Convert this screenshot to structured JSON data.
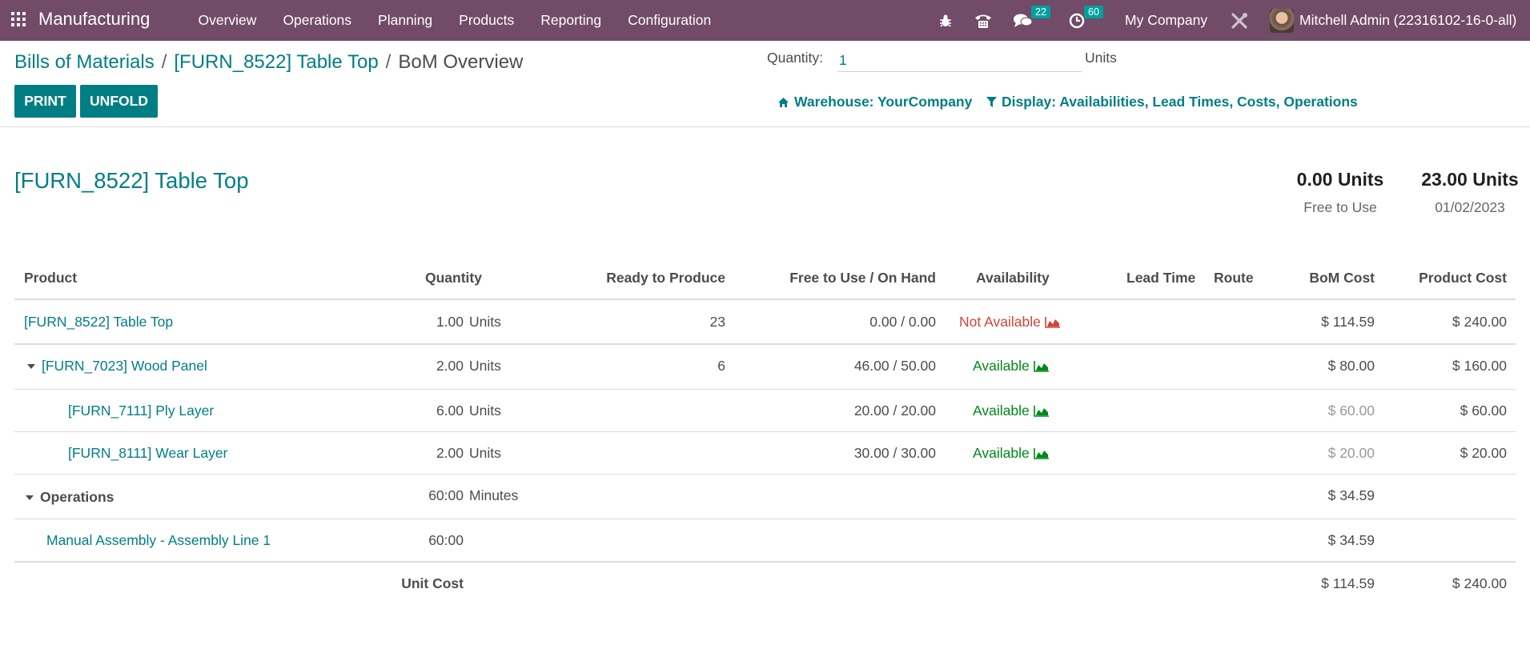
{
  "navbar": {
    "app_name": "Manufacturing",
    "menu": [
      "Overview",
      "Operations",
      "Planning",
      "Products",
      "Reporting",
      "Configuration"
    ],
    "messages_badge": "22",
    "activities_badge": "60",
    "company": "My Company",
    "user": "Mitchell Admin (22316102-16-0-all)",
    "icons": [
      "apps-grid-icon",
      "bug-icon",
      "phone-icon",
      "chat-icon",
      "clock-icon",
      "tools-icon"
    ]
  },
  "breadcrumb": {
    "items": [
      "Bills of Materials",
      "[FURN_8522] Table Top"
    ],
    "current": "BoM Overview",
    "separator": "/"
  },
  "buttons": {
    "print": "PRINT",
    "unfold": "UNFOLD"
  },
  "quantity": {
    "label": "Quantity:",
    "value": "1",
    "unit": "Units"
  },
  "filters": {
    "warehouse": "Warehouse: YourCompany",
    "display": "Display: Availabilities, Lead Times, Costs, Operations"
  },
  "report": {
    "title": "[FURN_8522] Table Top",
    "free_to_use_value": "0.00 Units",
    "free_to_use_label": "Free to Use",
    "forecast_value": "23.00 Units",
    "forecast_date": "01/02/2023"
  },
  "table": {
    "headers": {
      "product": "Product",
      "quantity": "Quantity",
      "ready": "Ready to Produce",
      "free_on_hand": "Free to Use / On Hand",
      "availability": "Availability",
      "lead_time": "Lead Time",
      "route": "Route",
      "bom_cost": "BoM Cost",
      "product_cost": "Product Cost"
    },
    "rows": [
      {
        "product": "[FURN_8522] Table Top",
        "qty": "1.00",
        "uom": "Units",
        "ready": "23",
        "free": "0.00 / 0.00",
        "availability": "Not Available",
        "bom_cost": "$ 114.59",
        "product_cost": "$ 240.00"
      },
      {
        "product": "[FURN_7023] Wood Panel",
        "qty": "2.00",
        "uom": "Units",
        "ready": "6",
        "free": "46.00 / 50.00",
        "availability": "Available",
        "bom_cost": "$ 80.00",
        "product_cost": "$ 160.00"
      },
      {
        "product": "[FURN_7111] Ply Layer",
        "qty": "6.00",
        "uom": "Units",
        "ready": "",
        "free": "20.00 / 20.00",
        "availability": "Available",
        "bom_cost": "$ 60.00",
        "product_cost": "$ 60.00"
      },
      {
        "product": "[FURN_8111] Wear Layer",
        "qty": "2.00",
        "uom": "Units",
        "ready": "",
        "free": "30.00 / 30.00",
        "availability": "Available",
        "bom_cost": "$ 20.00",
        "product_cost": "$ 20.00"
      },
      {
        "product": "Operations",
        "qty": "60:00",
        "uom": "Minutes",
        "ready": "",
        "free": "",
        "availability": "",
        "bom_cost": "$ 34.59",
        "product_cost": ""
      },
      {
        "product": "Manual Assembly - Assembly Line 1",
        "qty": "60:00",
        "uom": "",
        "ready": "",
        "free": "",
        "availability": "",
        "bom_cost": "$ 34.59",
        "product_cost": ""
      }
    ],
    "footer": {
      "label": "Unit Cost",
      "bom_cost": "$ 114.59",
      "product_cost": "$ 240.00"
    }
  },
  "colors": {
    "navbar": "#714b67",
    "primary": "#017e84",
    "available": "#008818",
    "not_available": "#d04437",
    "badge": "#00a09d"
  }
}
